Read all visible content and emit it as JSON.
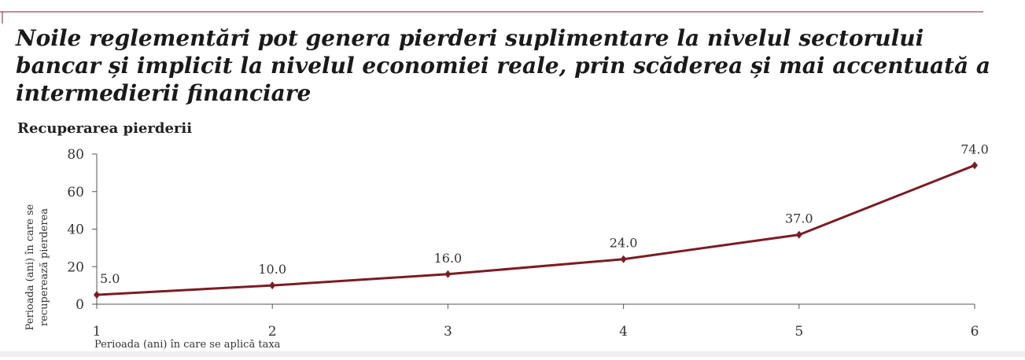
{
  "chart_data": {
    "type": "line",
    "title": [
      "Noile reglementări pot genera pierderi suplimentare la nivelul sectorului",
      "bancar și implicit la nivelul economiei reale, prin scăderea și mai accentuată a",
      "intermedierii financiare"
    ],
    "subtitle": "Recuperarea pierderii",
    "y_label": [
      "Perioada (ani) în care se",
      "recuperează pierderea"
    ],
    "x_label": "Perioada (ani) în care se aplică taxa",
    "x": [
      1,
      2,
      3,
      4,
      5,
      6
    ],
    "xlim": [
      1,
      6
    ],
    "xticks": [
      1,
      2,
      3,
      4,
      5,
      6
    ],
    "ylim": [
      0,
      80
    ],
    "yticks": [
      0,
      20,
      40,
      60,
      80
    ],
    "grid": false,
    "series": [
      {
        "color": "#7b1c24",
        "values": [
          5,
          10,
          16,
          24,
          37,
          74
        ],
        "value_labels": [
          "5.0",
          "10.0",
          "16.0",
          "24.0",
          "37.0",
          "74.0"
        ]
      }
    ]
  }
}
